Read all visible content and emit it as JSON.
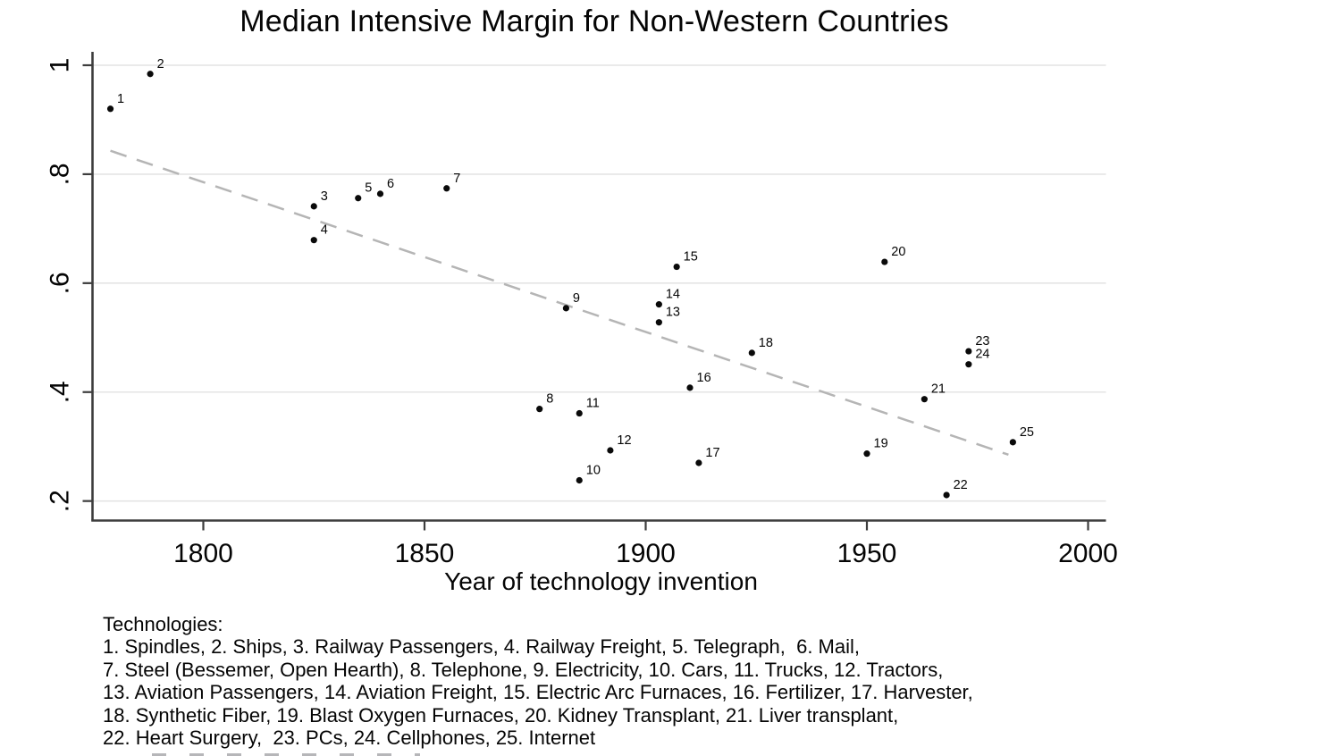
{
  "chart_data": {
    "type": "scatter",
    "title": "Median Intensive Margin for Non-Western Countries",
    "xlabel": "Year of technology invention",
    "ylabel": "",
    "xlim": [
      1775,
      2004
    ],
    "ylim": [
      0.16,
      1.03
    ],
    "grid": true,
    "grid_axis": "y",
    "x_ticks": [
      {
        "value": 1800,
        "label": "1800"
      },
      {
        "value": 1850,
        "label": "1850"
      },
      {
        "value": 1900,
        "label": "1900"
      },
      {
        "value": 1950,
        "label": "1950"
      },
      {
        "value": 2000,
        "label": "2000"
      }
    ],
    "y_ticks": [
      {
        "value": 0.2,
        "label": ".2"
      },
      {
        "value": 0.4,
        "label": ".4"
      },
      {
        "value": 0.6,
        "label": ".6"
      },
      {
        "value": 0.8,
        "label": ".8"
      },
      {
        "value": 1.0,
        "label": "1"
      }
    ],
    "marker_color": "#0a0a0a",
    "trend_line": {
      "style": "dashed",
      "color": "#b5b5b5",
      "x": [
        1779,
        1982
      ],
      "y": [
        0.843,
        0.285
      ]
    },
    "points": [
      {
        "label": "1",
        "technology": "Spindles",
        "year": 1779,
        "value": 0.92
      },
      {
        "label": "2",
        "technology": "Ships",
        "year": 1788,
        "value": 0.984
      },
      {
        "label": "3",
        "technology": "Railway Passengers",
        "year": 1825,
        "value": 0.741
      },
      {
        "label": "4",
        "technology": "Railway Freight",
        "year": 1825,
        "value": 0.679
      },
      {
        "label": "5",
        "technology": "Telegraph",
        "year": 1835,
        "value": 0.756
      },
      {
        "label": "6",
        "technology": "Mail",
        "year": 1840,
        "value": 0.764
      },
      {
        "label": "7",
        "technology": "Steel (Bessemer, Open Hearth)",
        "year": 1855,
        "value": 0.774
      },
      {
        "label": "8",
        "technology": "Telephone",
        "year": 1876,
        "value": 0.369
      },
      {
        "label": "9",
        "technology": "Electricity",
        "year": 1882,
        "value": 0.554
      },
      {
        "label": "10",
        "technology": "Cars",
        "year": 1885,
        "value": 0.238
      },
      {
        "label": "11",
        "technology": "Trucks",
        "year": 1885,
        "value": 0.361
      },
      {
        "label": "12",
        "technology": "Tractors",
        "year": 1892,
        "value": 0.293
      },
      {
        "label": "13",
        "technology": "Aviation Passengers",
        "year": 1903,
        "value": 0.528
      },
      {
        "label": "14",
        "technology": "Aviation Freight",
        "year": 1903,
        "value": 0.561
      },
      {
        "label": "15",
        "technology": "Electric Arc Furnaces",
        "year": 1907,
        "value": 0.63
      },
      {
        "label": "16",
        "technology": "Fertilizer",
        "year": 1910,
        "value": 0.408
      },
      {
        "label": "17",
        "technology": "Harvester",
        "year": 1912,
        "value": 0.27
      },
      {
        "label": "18",
        "technology": "Synthetic Fiber",
        "year": 1924,
        "value": 0.472
      },
      {
        "label": "19",
        "technology": "Blast Oxygen Furnaces",
        "year": 1950,
        "value": 0.287
      },
      {
        "label": "20",
        "technology": "Kidney Transplant",
        "year": 1954,
        "value": 0.639
      },
      {
        "label": "21",
        "technology": "Liver transplant",
        "year": 1963,
        "value": 0.387
      },
      {
        "label": "22",
        "technology": "Heart Surgery",
        "year": 1968,
        "value": 0.211
      },
      {
        "label": "23",
        "technology": "PCs",
        "year": 1973,
        "value": 0.475
      },
      {
        "label": "24",
        "technology": "Cellphones",
        "year": 1973,
        "value": 0.451
      },
      {
        "label": "25",
        "technology": "Internet",
        "year": 1983,
        "value": 0.308
      }
    ]
  },
  "notes": {
    "heading": "Technologies:",
    "lines": [
      "1. Spindles, 2. Ships, 3. Railway Passengers, 4. Railway Freight, 5. Telegraph,  6. Mail,",
      "7. Steel (Bessemer, Open Hearth), 8. Telephone, 9. Electricity, 10. Cars, 11. Trucks, 12. Tractors,",
      "13. Aviation Passengers, 14. Aviation Freight, 15. Electric Arc Furnaces, 16. Fertilizer, 17. Harvester,",
      "18. Synthetic Fiber, 19. Blast Oxygen Furnaces, 20. Kidney Transplant, 21. Liver transplant,",
      "22. Heart Surgery,  23. PCs, 24. Cellphones, 25. Internet"
    ]
  },
  "colors": {
    "gridline": "#e4e4e4",
    "axis": "#3d3d3d",
    "trend": "#b5b5b5",
    "marker": "#0a0a0a"
  }
}
